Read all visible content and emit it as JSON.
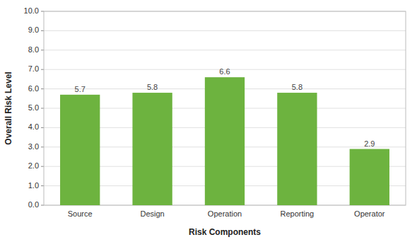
{
  "chart_data": {
    "type": "bar",
    "xlabel": "Risk Components",
    "ylabel": "Overall Risk Level",
    "categories": [
      "Source",
      "Design",
      "Operation",
      "Reporting",
      "Operator"
    ],
    "values": [
      5.7,
      5.8,
      6.6,
      5.8,
      2.9
    ],
    "color": "#6db33f",
    "ylim": [
      0.0,
      10.0
    ],
    "yticks": [
      {
        "value": 0.0,
        "label": "0.0"
      },
      {
        "value": 1.0,
        "label": "1.0"
      },
      {
        "value": 2.0,
        "label": "2.0"
      },
      {
        "value": 3.0,
        "label": "3.0"
      },
      {
        "value": 4.0,
        "label": "4.0"
      },
      {
        "value": 5.0,
        "label": "5.0"
      },
      {
        "value": 6.0,
        "label": "6.0"
      },
      {
        "value": 7.0,
        "label": "7.0"
      },
      {
        "value": 8.0,
        "label": "8.0"
      },
      {
        "value": 9.0,
        "label": "9.0"
      },
      {
        "value": 10.0,
        "label": "10.0"
      }
    ],
    "grid": true,
    "data_labels": true
  }
}
